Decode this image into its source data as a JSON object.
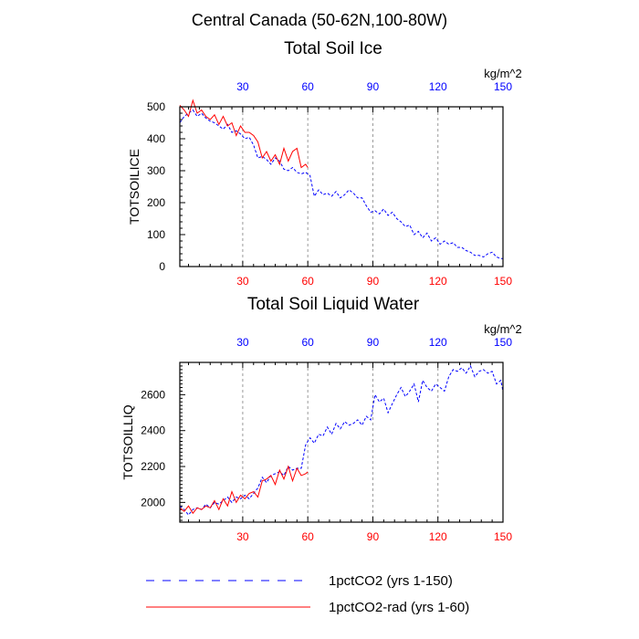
{
  "figure": {
    "title": "Central Canada (50-62N,100-80W)",
    "colors": {
      "blue_series": "#0000ff",
      "red_series": "#ff0000",
      "grid": "#999999"
    }
  },
  "legend": {
    "items": [
      {
        "label": "1pctCO2 (yrs 1-150)",
        "color": "#0000ff",
        "style": "dashed"
      },
      {
        "label": "1pctCO2-rad (yrs 1-60)",
        "color": "#ff0000",
        "style": "solid"
      }
    ]
  },
  "chart_data": [
    {
      "type": "line",
      "title": "Total Soil Ice",
      "ylabel": "TOTSOILICE",
      "units": "kg/m^2",
      "xlim": [
        1,
        150
      ],
      "ylim": [
        0,
        500
      ],
      "yticks": [
        0,
        100,
        200,
        300,
        400,
        500
      ],
      "xticks": [
        30,
        60,
        90,
        120,
        150
      ],
      "grid": "vertical dashed",
      "series": [
        {
          "name": "1pctCO2 (yrs 1-150)",
          "color": "#0000ff",
          "x": [
            1,
            3,
            5,
            7,
            9,
            11,
            13,
            15,
            17,
            19,
            21,
            23,
            25,
            27,
            29,
            31,
            33,
            35,
            37,
            39,
            41,
            43,
            45,
            47,
            49,
            51,
            53,
            55,
            57,
            59,
            61,
            63,
            65,
            67,
            69,
            71,
            73,
            75,
            77,
            79,
            81,
            83,
            85,
            87,
            89,
            91,
            93,
            95,
            97,
            99,
            101,
            103,
            105,
            107,
            109,
            111,
            113,
            115,
            117,
            119,
            121,
            123,
            125,
            127,
            129,
            131,
            133,
            135,
            137,
            139,
            141,
            143,
            145,
            147,
            149,
            150
          ],
          "y": [
            450,
            470,
            480,
            490,
            470,
            480,
            465,
            455,
            450,
            440,
            430,
            445,
            420,
            425,
            415,
            400,
            405,
            380,
            340,
            345,
            335,
            320,
            340,
            330,
            305,
            300,
            310,
            295,
            290,
            295,
            285,
            220,
            240,
            225,
            230,
            220,
            235,
            215,
            225,
            240,
            230,
            215,
            215,
            190,
            170,
            175,
            165,
            180,
            160,
            170,
            150,
            140,
            125,
            130,
            100,
            110,
            90,
            105,
            80,
            90,
            70,
            80,
            70,
            75,
            60,
            60,
            50,
            45,
            35,
            35,
            30,
            40,
            45,
            30,
            25,
            25
          ]
        },
        {
          "name": "1pctCO2-rad (yrs 1-60)",
          "color": "#ff0000",
          "x": [
            1,
            3,
            5,
            7,
            9,
            11,
            13,
            15,
            17,
            19,
            21,
            23,
            25,
            27,
            29,
            31,
            33,
            35,
            37,
            39,
            41,
            43,
            45,
            47,
            49,
            51,
            53,
            55,
            57,
            59,
            60
          ],
          "y": [
            505,
            490,
            470,
            520,
            480,
            490,
            470,
            460,
            475,
            445,
            470,
            440,
            450,
            410,
            440,
            420,
            420,
            410,
            390,
            340,
            360,
            330,
            350,
            320,
            370,
            330,
            360,
            370,
            310,
            320,
            310
          ]
        }
      ]
    },
    {
      "type": "line",
      "title": "Total Soil Liquid Water",
      "ylabel": "TOTSOILLIQ",
      "units": "kg/m^2",
      "xlim": [
        1,
        150
      ],
      "ylim": [
        1890,
        2780
      ],
      "yticks": [
        2000,
        2200,
        2400,
        2600
      ],
      "xticks": [
        30,
        60,
        90,
        120,
        150
      ],
      "grid": "vertical dashed",
      "series": [
        {
          "name": "1pctCO2 (yrs 1-150)",
          "color": "#0000ff",
          "x": [
            1,
            3,
            5,
            7,
            9,
            11,
            13,
            15,
            17,
            19,
            21,
            23,
            25,
            27,
            29,
            31,
            33,
            35,
            37,
            39,
            41,
            43,
            45,
            47,
            49,
            51,
            53,
            55,
            57,
            59,
            61,
            63,
            65,
            67,
            69,
            71,
            73,
            75,
            77,
            79,
            81,
            83,
            85,
            87,
            89,
            91,
            93,
            95,
            97,
            99,
            101,
            103,
            105,
            107,
            109,
            111,
            113,
            115,
            117,
            119,
            121,
            123,
            125,
            127,
            129,
            131,
            133,
            135,
            137,
            139,
            141,
            143,
            145,
            147,
            149,
            150
          ],
          "y": [
            1980,
            1960,
            1930,
            1960,
            1970,
            1960,
            1990,
            1970,
            2000,
            1990,
            2010,
            2030,
            2000,
            2030,
            2020,
            2040,
            2020,
            2050,
            2080,
            2140,
            2110,
            2150,
            2160,
            2170,
            2150,
            2200,
            2180,
            2190,
            2190,
            2320,
            2360,
            2330,
            2380,
            2370,
            2420,
            2380,
            2440,
            2410,
            2450,
            2430,
            2440,
            2460,
            2430,
            2480,
            2460,
            2600,
            2560,
            2580,
            2500,
            2550,
            2600,
            2640,
            2590,
            2620,
            2660,
            2560,
            2680,
            2640,
            2620,
            2660,
            2640,
            2620,
            2700,
            2740,
            2730,
            2750,
            2720,
            2760,
            2700,
            2730,
            2740,
            2720,
            2730,
            2660,
            2680,
            2620
          ]
        },
        {
          "name": "1pctCO2-rad (yrs 1-60)",
          "color": "#ff0000",
          "x": [
            1,
            3,
            5,
            7,
            9,
            11,
            13,
            15,
            17,
            19,
            21,
            23,
            25,
            27,
            29,
            31,
            33,
            35,
            37,
            39,
            41,
            43,
            45,
            47,
            49,
            51,
            53,
            55,
            57,
            59,
            60
          ],
          "y": [
            1970,
            1950,
            1980,
            1940,
            1970,
            1960,
            1980,
            1970,
            2010,
            1960,
            2020,
            1980,
            2060,
            2000,
            2040,
            2020,
            2050,
            2060,
            2030,
            2120,
            2130,
            2150,
            2100,
            2180,
            2130,
            2200,
            2120,
            2190,
            2150,
            2160,
            2170
          ]
        }
      ]
    }
  ]
}
